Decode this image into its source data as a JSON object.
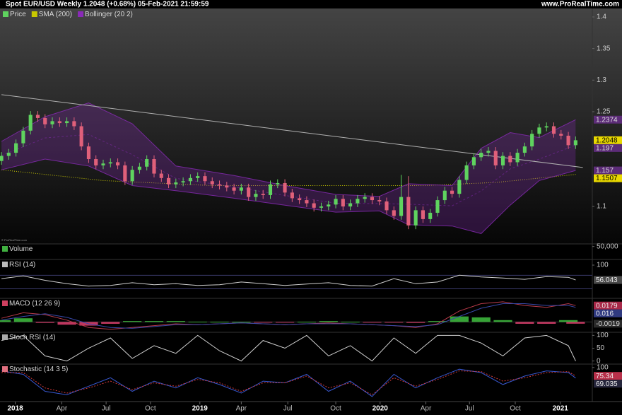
{
  "header": {
    "title": "Spot EUR/USD Weekly 1.2048 (+0.68%) 05-Feb-2021 21:59:59",
    "site": "www.ProRealTime.com",
    "watermark": "© ProRealTime.com"
  },
  "chart_data": [
    {
      "type": "candlestick",
      "name": "Price",
      "color_up": "#5fd35f",
      "color_down": "#e0607a",
      "open": [
        1.172,
        1.18,
        1.185,
        1.2,
        1.22,
        1.245,
        1.24,
        1.23,
        1.235,
        1.232,
        1.235,
        1.227,
        1.195,
        1.175,
        1.165,
        1.168,
        1.17,
        1.165,
        1.14,
        1.158,
        1.163,
        1.175,
        1.152,
        1.145,
        1.135,
        1.138,
        1.14,
        1.145,
        1.148,
        1.14,
        1.135,
        1.133,
        1.13,
        1.125,
        1.13,
        1.115,
        1.12,
        1.118,
        1.135,
        1.137,
        1.122,
        1.113,
        1.11,
        1.105,
        1.098,
        1.1,
        1.103,
        1.112,
        1.1,
        1.105,
        1.112,
        1.115,
        1.11,
        1.108,
        1.094,
        1.085,
        1.115,
        1.07,
        1.094,
        1.08,
        1.09,
        1.11,
        1.125,
        1.12,
        1.142,
        1.165,
        1.178,
        1.185,
        1.188,
        1.165,
        1.18,
        1.17,
        1.185,
        1.195,
        1.215,
        1.225,
        1.227,
        1.215,
        1.212,
        1.197
      ],
      "high": [
        1.186,
        1.191,
        1.206,
        1.226,
        1.251,
        1.251,
        1.246,
        1.241,
        1.241,
        1.241,
        1.241,
        1.233,
        1.201,
        1.181,
        1.174,
        1.176,
        1.176,
        1.171,
        1.164,
        1.169,
        1.181,
        1.181,
        1.158,
        1.151,
        1.144,
        1.146,
        1.151,
        1.154,
        1.154,
        1.146,
        1.141,
        1.139,
        1.136,
        1.136,
        1.136,
        1.126,
        1.126,
        1.141,
        1.143,
        1.143,
        1.128,
        1.119,
        1.116,
        1.111,
        1.106,
        1.109,
        1.118,
        1.118,
        1.111,
        1.118,
        1.121,
        1.121,
        1.116,
        1.114,
        1.1,
        1.15,
        1.148,
        1.1,
        1.1,
        1.096,
        1.116,
        1.131,
        1.131,
        1.148,
        1.171,
        1.184,
        1.191,
        1.194,
        1.194,
        1.186,
        1.186,
        1.191,
        1.201,
        1.221,
        1.231,
        1.233,
        1.233,
        1.221,
        1.218,
        1.2108
      ],
      "low": [
        1.166,
        1.174,
        1.179,
        1.194,
        1.214,
        1.234,
        1.224,
        1.224,
        1.226,
        1.226,
        1.221,
        1.189,
        1.169,
        1.159,
        1.159,
        1.162,
        1.159,
        1.134,
        1.134,
        1.152,
        1.157,
        1.146,
        1.139,
        1.129,
        1.129,
        1.132,
        1.134,
        1.139,
        1.134,
        1.129,
        1.127,
        1.124,
        1.119,
        1.119,
        1.109,
        1.109,
        1.112,
        1.112,
        1.129,
        1.116,
        1.107,
        1.104,
        1.099,
        1.092,
        1.092,
        1.094,
        1.097,
        1.094,
        1.094,
        1.099,
        1.106,
        1.104,
        1.102,
        1.088,
        1.079,
        1.079,
        1.064,
        1.064,
        1.074,
        1.074,
        1.084,
        1.104,
        1.114,
        1.114,
        1.136,
        1.159,
        1.172,
        1.179,
        1.159,
        1.159,
        1.164,
        1.164,
        1.179,
        1.189,
        1.209,
        1.219,
        1.209,
        1.206,
        1.191,
        1.191
      ],
      "close": [
        1.18,
        1.185,
        1.2,
        1.22,
        1.245,
        1.24,
        1.23,
        1.235,
        1.232,
        1.235,
        1.227,
        1.195,
        1.175,
        1.165,
        1.168,
        1.17,
        1.165,
        1.14,
        1.158,
        1.163,
        1.175,
        1.152,
        1.145,
        1.135,
        1.138,
        1.14,
        1.145,
        1.148,
        1.14,
        1.135,
        1.133,
        1.13,
        1.125,
        1.13,
        1.115,
        1.12,
        1.118,
        1.135,
        1.137,
        1.122,
        1.113,
        1.11,
        1.105,
        1.098,
        1.1,
        1.103,
        1.112,
        1.1,
        1.105,
        1.112,
        1.115,
        1.11,
        1.108,
        1.094,
        1.085,
        1.115,
        1.07,
        1.094,
        1.08,
        1.09,
        1.11,
        1.125,
        1.12,
        1.142,
        1.165,
        1.178,
        1.185,
        1.188,
        1.165,
        1.18,
        1.17,
        1.185,
        1.195,
        1.215,
        1.225,
        1.227,
        1.215,
        1.212,
        1.197,
        1.2048
      ],
      "box_color": "#e8d800",
      "overlays": [
        {
          "type": "line",
          "name": "SMA (200)",
          "color": "#c8c800",
          "box_color": "#e8d800",
          "x": [
            0,
            14,
            29,
            44,
            58,
            68,
            79
          ],
          "values": [
            1.158,
            1.141,
            1.133,
            1.133,
            1.133,
            1.138,
            1.1507
          ]
        },
        {
          "type": "band",
          "name": "Bollinger (20 2)",
          "color": "#8a2ab8",
          "box_color": "#5c2c78",
          "x": [
            0,
            6,
            12,
            18,
            24,
            32,
            39,
            46,
            52,
            56,
            62,
            66,
            70,
            74,
            79
          ],
          "upper": [
            1.203,
            1.242,
            1.264,
            1.231,
            1.164,
            1.149,
            1.133,
            1.119,
            1.116,
            1.136,
            1.133,
            1.192,
            1.217,
            1.209,
            1.2374
          ],
          "middle": [
            1.1805,
            1.2085,
            1.214,
            1.182,
            1.1445,
            1.131,
            1.1175,
            1.105,
            1.1045,
            1.1035,
            1.101,
            1.1245,
            1.1595,
            1.175,
            1.197
          ],
          "lower": [
            1.158,
            1.175,
            1.164,
            1.133,
            1.125,
            1.113,
            1.102,
            1.091,
            1.093,
            1.071,
            1.069,
            1.057,
            1.102,
            1.141,
            1.157
          ]
        }
      ],
      "trendline": {
        "color": "#b0b0b0",
        "x": [
          0,
          80
        ],
        "values": [
          1.277,
          1.1617
        ]
      },
      "xlim": [
        -0.2,
        81.3
      ],
      "xticks": [
        {
          "value": 1.9,
          "label": "2018"
        },
        {
          "value": 8.3,
          "label": "Apr"
        },
        {
          "value": 14.4,
          "label": "Jul"
        },
        {
          "value": 20.5,
          "label": "Oct"
        },
        {
          "value": 27.3,
          "label": "2019"
        },
        {
          "value": 33.0,
          "label": "Apr"
        },
        {
          "value": 39.4,
          "label": "Jul"
        },
        {
          "value": 46.0,
          "label": "Oct"
        },
        {
          "value": 52.1,
          "label": "2020"
        },
        {
          "value": 58.4,
          "label": "Apr"
        },
        {
          "value": 64.4,
          "label": "Jul"
        },
        {
          "value": 70.7,
          "label": "Oct"
        },
        {
          "value": 76.9,
          "label": "2021"
        }
      ],
      "ylim": [
        1.0407,
        1.4134
      ],
      "yticks": [
        1.1,
        1.25,
        1.3,
        1.35,
        1.4
      ]
    },
    {
      "type": "bar",
      "title": "Volume",
      "color": "#40b040",
      "ylim": [
        0,
        60000
      ],
      "yticks": [
        {
          "value": 50000,
          "label": "50,000"
        }
      ]
    },
    {
      "type": "line",
      "title": "RSI (14)",
      "color": "#bbbbbb",
      "ylim": [
        5.9,
        116.7
      ],
      "yticks": [
        100
      ],
      "levels": [
        30,
        70
      ],
      "x": [
        0,
        3,
        6,
        9,
        12,
        15,
        18,
        21,
        24,
        27,
        30,
        33,
        36,
        39,
        42,
        45,
        48,
        51,
        54,
        57,
        60,
        63,
        66,
        69,
        72,
        75,
        78,
        79
      ],
      "series": [
        {
          "color": "#cfcfcf",
          "box_color": "#4a4a4a",
          "values": [
            60,
            68,
            55,
            45,
            38,
            40,
            48,
            42,
            45,
            40,
            42,
            50,
            45,
            40,
            44,
            48,
            40,
            38,
            60,
            45,
            50,
            70,
            65,
            62,
            58,
            66,
            64,
            56.043
          ]
        }
      ]
    },
    {
      "type": "line",
      "title": "MACD (12 26 9)",
      "color": "#d04060",
      "ylim": [
        -0.0082,
        0.0258
      ],
      "x": [
        0,
        3,
        6,
        9,
        12,
        15,
        18,
        21,
        24,
        27,
        30,
        33,
        36,
        39,
        42,
        45,
        48,
        51,
        54,
        57,
        60,
        63,
        66,
        69,
        72,
        75,
        78,
        79
      ],
      "bars": {
        "color_up": "#40c040",
        "color_down": "#e04070",
        "box_color": "#2a2a2a",
        "values": [
          0.002,
          0.004,
          -0.001,
          -0.003,
          -0.004,
          -0.002,
          0.001,
          0.001,
          0.001,
          0.0003,
          0.0002,
          0.0001,
          -0.0002,
          -0.0003,
          0.0002,
          0.001,
          0.0002,
          -0.0002,
          -0.0004,
          -0.001,
          0.001,
          0.006,
          0.005,
          0.002,
          -0.002,
          -0.002,
          0.002,
          -0.0019
        ]
      },
      "series": [
        {
          "color": "#b83a4a",
          "box_color": "#a82848",
          "values": [
            0.004,
            0.01,
            0.008,
            0.002,
            -0.006,
            -0.008,
            -0.006,
            -0.004,
            -0.002,
            -0.003,
            -0.002,
            -0.001,
            -0.002,
            -0.003,
            -0.002,
            -0.001,
            -0.002,
            -0.003,
            -0.004,
            -0.006,
            -0.002,
            0.012,
            0.02,
            0.022,
            0.018,
            0.016,
            0.02,
            0.0179
          ]
        },
        {
          "color": "#3848a8",
          "box_color": "#303a80",
          "values": [
            0.002,
            0.006,
            0.009,
            0.005,
            -0.002,
            -0.006,
            -0.007,
            -0.005,
            -0.003,
            -0.003,
            -0.002,
            -0.001,
            -0.002,
            -0.003,
            -0.002,
            -0.002,
            -0.002,
            -0.003,
            -0.004,
            -0.005,
            -0.003,
            0.006,
            0.015,
            0.02,
            0.02,
            0.018,
            0.018,
            0.016
          ]
        }
      ]
    },
    {
      "type": "line",
      "title": "Stoch RSI (14)",
      "color": "#aaaaaa",
      "ylim": [
        -12,
        112
      ],
      "yticks": [
        0,
        50,
        100
      ],
      "x": [
        0,
        3,
        6,
        9,
        12,
        15,
        18,
        21,
        24,
        27,
        30,
        33,
        36,
        39,
        42,
        45,
        48,
        51,
        54,
        57,
        60,
        63,
        66,
        69,
        72,
        75,
        78,
        79
      ],
      "series": [
        {
          "color": "#d0d0d0",
          "values": [
            80,
            100,
            20,
            0,
            50,
            90,
            10,
            60,
            30,
            100,
            40,
            0,
            80,
            50,
            100,
            20,
            60,
            0,
            90,
            30,
            100,
            100,
            70,
            20,
            90,
            100,
            60,
            0
          ]
        }
      ]
    },
    {
      "type": "line",
      "title": "Stochastic (14 3 5)",
      "color": "#e07080",
      "ylim": [
        0,
        110
      ],
      "yticks": [
        100
      ],
      "x": [
        0,
        3,
        6,
        9,
        12,
        15,
        18,
        21,
        24,
        27,
        30,
        33,
        36,
        39,
        42,
        45,
        48,
        51,
        54,
        57,
        60,
        63,
        66,
        69,
        72,
        75,
        78,
        79
      ],
      "series": [
        {
          "color": "#3858d0",
          "box_color": "#26263c",
          "values": [
            90,
            80,
            30,
            20,
            45,
            70,
            30,
            60,
            40,
            70,
            50,
            25,
            60,
            55,
            80,
            30,
            60,
            15,
            80,
            40,
            70,
            95,
            85,
            50,
            75,
            90,
            85,
            69.035
          ]
        },
        {
          "color": "#d03838",
          "dash": "2 2",
          "box_color": "#b8304a",
          "values": [
            85,
            85,
            40,
            25,
            40,
            60,
            35,
            55,
            45,
            65,
            55,
            30,
            55,
            55,
            75,
            40,
            55,
            20,
            70,
            45,
            65,
            90,
            88,
            60,
            70,
            85,
            88,
            75.34
          ]
        }
      ]
    }
  ]
}
